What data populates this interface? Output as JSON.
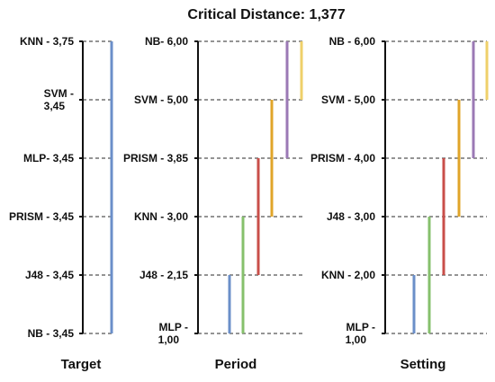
{
  "title": "Critical Distance: 1,377",
  "colors": {
    "axis": "#111111",
    "dash": "#555555",
    "blue": "#6b8fc9",
    "green": "#86c06c",
    "red": "#c94f4a",
    "orange": "#e0a529",
    "purple": "#9b79b5",
    "yellow": "#efd06a"
  },
  "panels": [
    {
      "name": "Target",
      "labels": [
        [
          "KNN - 3,75"
        ],
        [
          "SVM -",
          "3,45"
        ],
        [
          "MLP- 3,45"
        ],
        [
          "PRISM - 3,45"
        ],
        [
          "J48 - 3,45"
        ],
        [
          "NB - 3,45"
        ]
      ],
      "bars": [
        {
          "from": 0,
          "to": 5,
          "color": "blue"
        }
      ]
    },
    {
      "name": "Period",
      "labels": [
        [
          "NB- 6,00"
        ],
        [
          "SVM - 5,00"
        ],
        [
          "PRISM - 3,85"
        ],
        [
          "KNN - 3,00"
        ],
        [
          "J48 - 2,15"
        ],
        [
          "MLP -",
          "1,00"
        ]
      ],
      "bars": [
        {
          "from": 4,
          "to": 5,
          "color": "blue"
        },
        {
          "from": 3,
          "to": 5,
          "color": "green"
        },
        {
          "from": 2,
          "to": 4,
          "color": "red"
        },
        {
          "from": 1,
          "to": 3,
          "color": "orange"
        },
        {
          "from": 0,
          "to": 2,
          "color": "purple"
        },
        {
          "from": 0,
          "to": 1,
          "color": "yellow"
        }
      ]
    },
    {
      "name": "Setting",
      "labels": [
        [
          "NB - 6,00"
        ],
        [
          "SVM - 5,00"
        ],
        [
          "PRISM - 4,00"
        ],
        [
          "J48 - 3,00"
        ],
        [
          "KNN - 2,00"
        ],
        [
          "MLP -",
          "1,00"
        ]
      ],
      "bars": [
        {
          "from": 4,
          "to": 5,
          "color": "blue"
        },
        {
          "from": 3,
          "to": 5,
          "color": "green"
        },
        {
          "from": 2,
          "to": 4,
          "color": "red"
        },
        {
          "from": 1,
          "to": 3,
          "color": "orange"
        },
        {
          "from": 0,
          "to": 2,
          "color": "purple"
        },
        {
          "from": 0,
          "to": 1,
          "color": "yellow"
        }
      ]
    }
  ]
}
